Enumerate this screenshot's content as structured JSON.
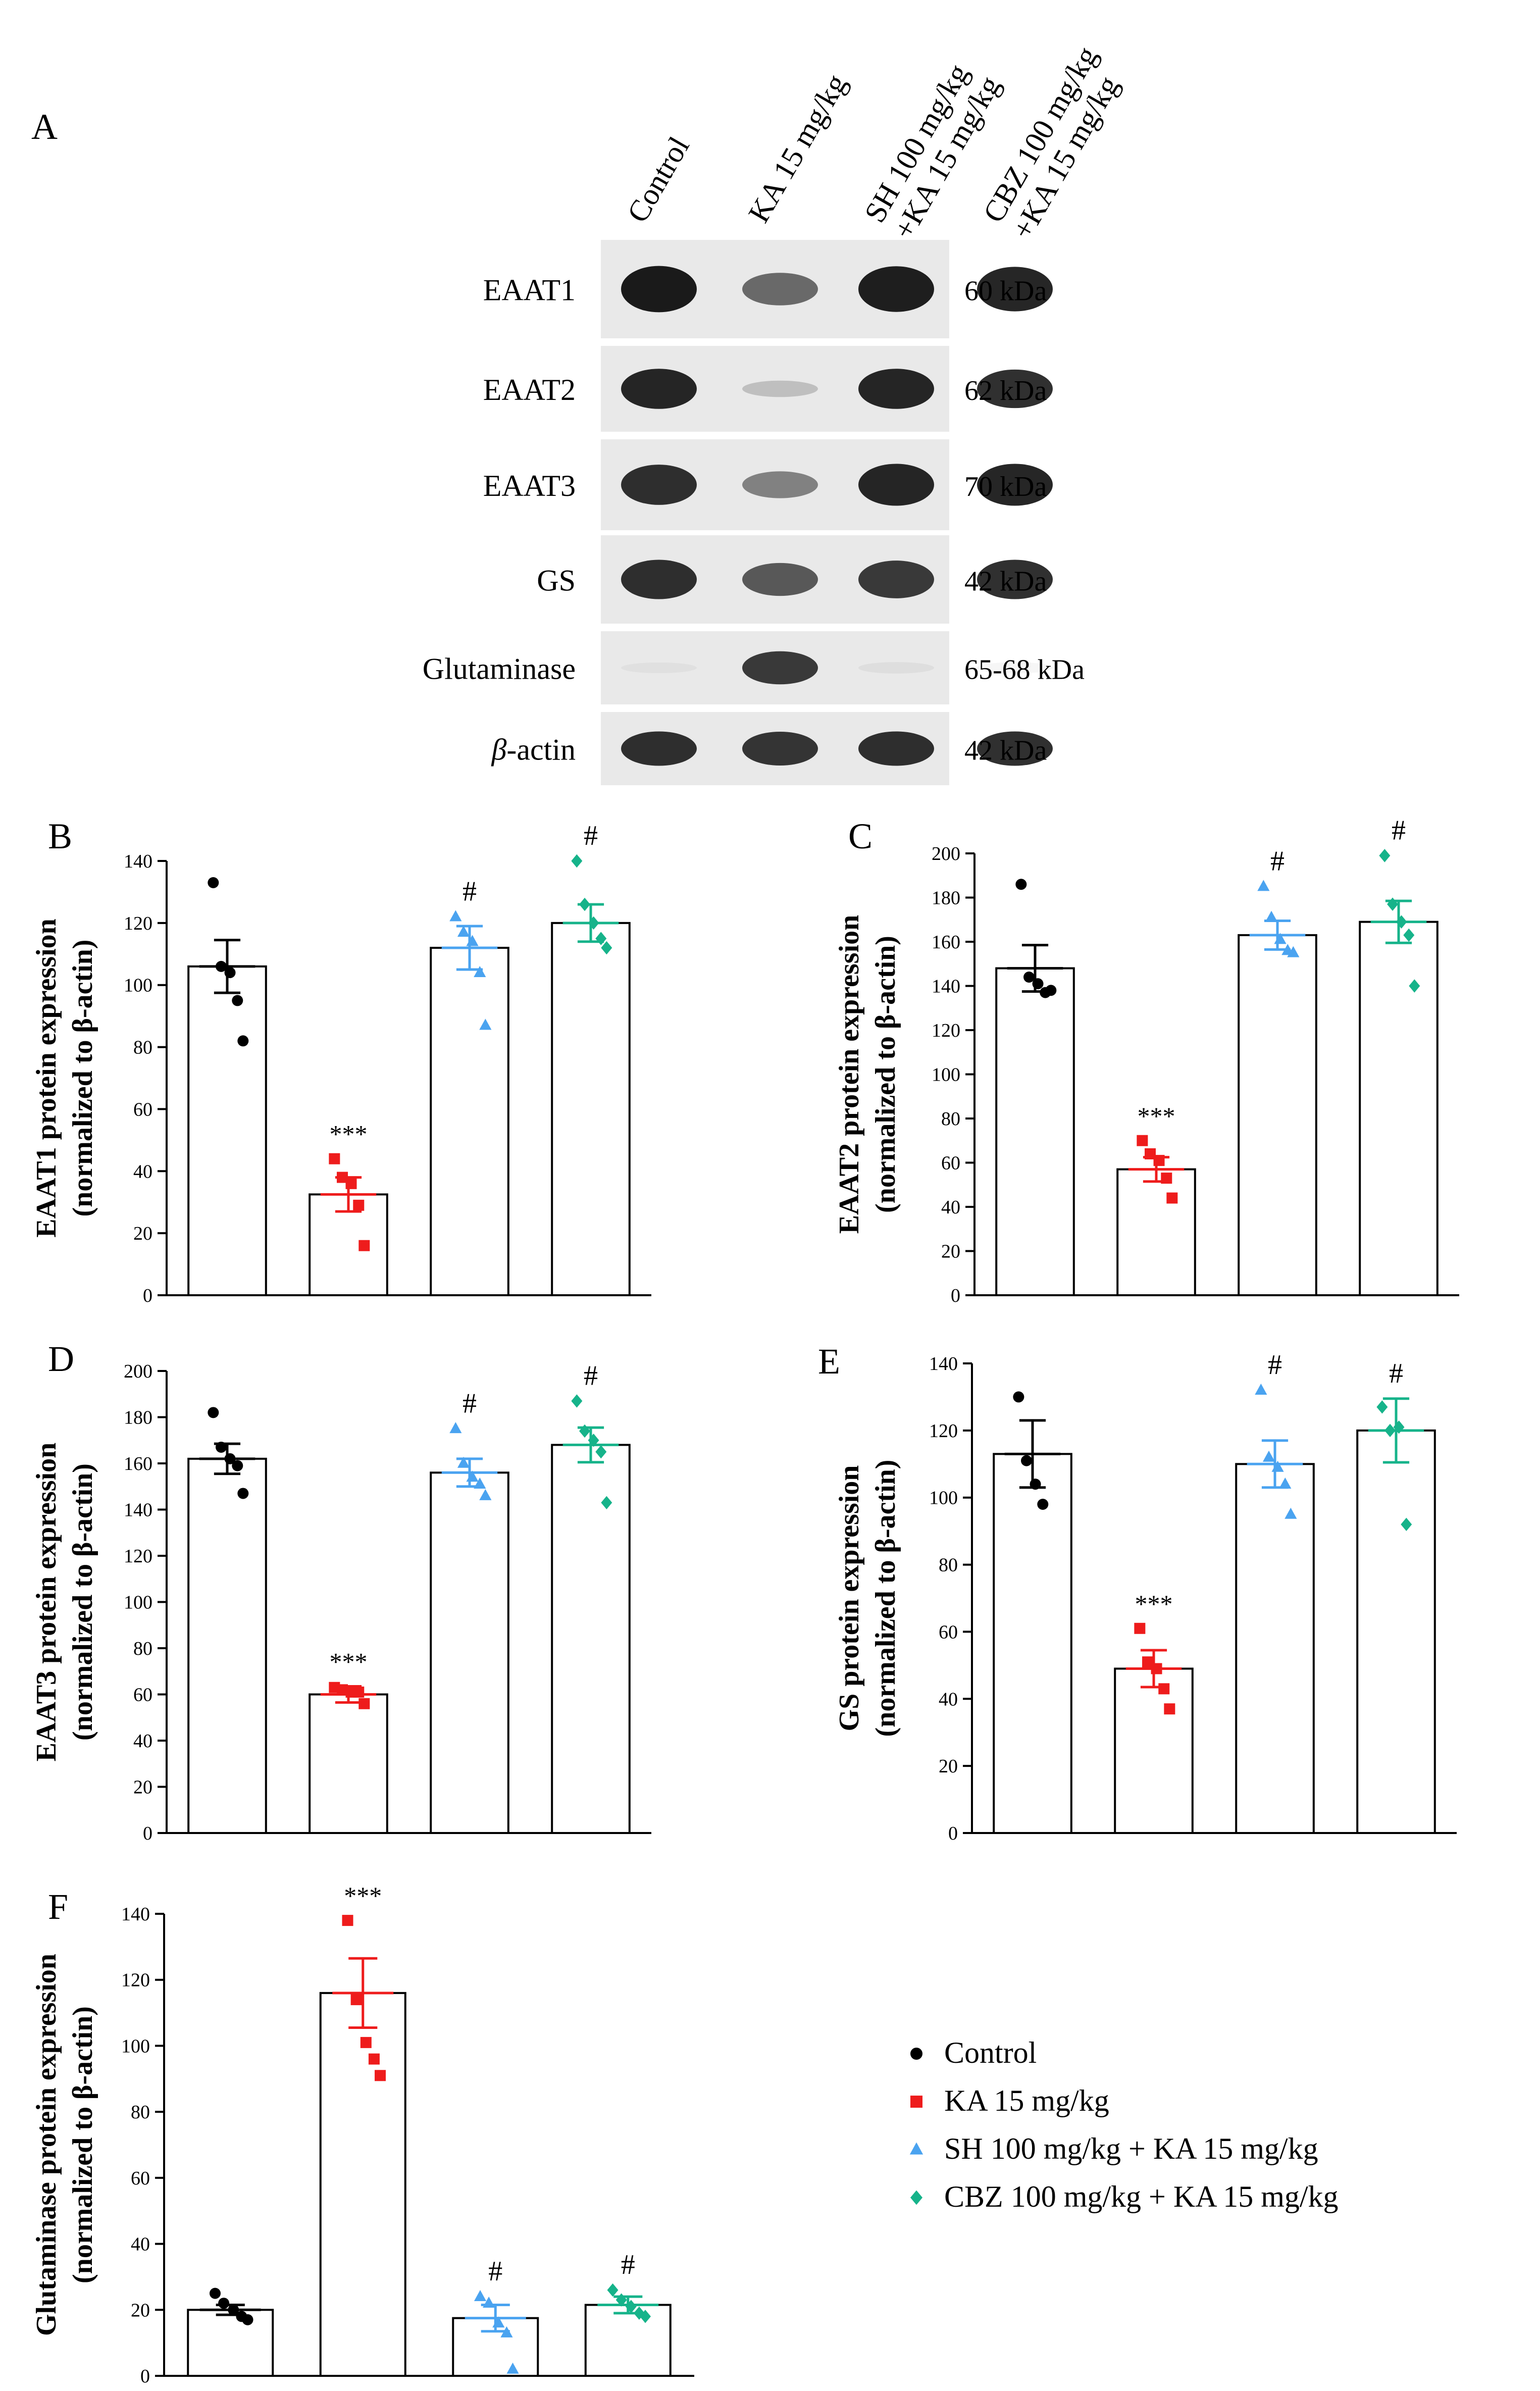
{
  "colors": {
    "control": "#000000",
    "ka": "#ee1c1c",
    "sh": "#4aa3f0",
    "cbz": "#16b38a",
    "axis": "#000000",
    "blot_bg": "#e9e9e9",
    "band": "#1a1a1a"
  },
  "blot": {
    "panel_label": "A",
    "lanes": [
      "Control",
      "KA 15 mg/kg",
      "SH 100 mg/kg\n+KA 15 mg/kg",
      "CBZ 100 mg/kg\n+KA 15 mg/kg"
    ],
    "rows": [
      {
        "protein": "EAAT1",
        "kda": "60 kDa",
        "intensity": [
          1.0,
          0.62,
          0.98,
          0.95
        ]
      },
      {
        "protein": "EAAT2",
        "kda": "62 kDa",
        "intensity": [
          0.95,
          0.2,
          0.95,
          0.9
        ]
      },
      {
        "protein": "EAAT3",
        "kda": "70 kDa",
        "intensity": [
          0.9,
          0.5,
          0.95,
          0.95
        ]
      },
      {
        "protein": "GS",
        "kda": "42 kDa",
        "intensity": [
          0.9,
          0.7,
          0.85,
          0.9
        ]
      },
      {
        "protein": "Glutaminase",
        "kda": "65-68 kDa",
        "intensity": [
          0.02,
          0.85,
          0.05,
          0.04
        ]
      },
      {
        "protein": "β-actin",
        "kda": "42 kDa",
        "intensity": [
          0.9,
          0.88,
          0.9,
          0.9
        ]
      }
    ]
  },
  "legend": {
    "items": [
      {
        "label": "Control",
        "marker": "circle",
        "color_key": "control"
      },
      {
        "label": "KA 15 mg/kg",
        "marker": "square",
        "color_key": "ka"
      },
      {
        "label": "SH 100 mg/kg + KA 15 mg/kg",
        "marker": "triangle",
        "color_key": "sh"
      },
      {
        "label": "CBZ 100 mg/kg + KA 15 mg/kg",
        "marker": "diamond",
        "color_key": "cbz"
      }
    ]
  },
  "chart_data": [
    {
      "panel": "B",
      "type": "bar",
      "ylabel": "EAAT1 protein expression",
      "ylabel2": "(normalized to β-actin)",
      "ylim": [
        0,
        140
      ],
      "yticks": [
        0,
        20,
        40,
        60,
        80,
        100,
        120,
        140
      ],
      "groups": [
        "Control",
        "KA 15 mg/kg",
        "SH 100 mg/kg + KA 15 mg/kg",
        "CBZ 100 mg/kg + KA 15 mg/kg"
      ],
      "values": [
        106,
        32.5,
        112,
        120
      ],
      "sem": [
        8.5,
        5.5,
        7,
        6
      ],
      "points": [
        [
          133,
          106,
          104,
          95,
          82
        ],
        [
          44,
          38,
          36,
          29,
          16
        ],
        [
          122,
          117,
          114,
          104,
          87
        ],
        [
          140,
          126,
          120,
          115,
          112
        ]
      ],
      "annotations": [
        "",
        "***",
        "#",
        "#"
      ]
    },
    {
      "panel": "C",
      "type": "bar",
      "ylabel": "EAAT2 protein expression",
      "ylabel2": "(normalized to β-actin)",
      "ylim": [
        0,
        200
      ],
      "yticks": [
        0,
        20,
        40,
        60,
        80,
        100,
        120,
        140,
        160,
        180,
        200
      ],
      "groups": [
        "Control",
        "KA 15 mg/kg",
        "SH 100 mg/kg + KA 15 mg/kg",
        "CBZ 100 mg/kg + KA 15 mg/kg"
      ],
      "values": [
        148,
        57,
        163,
        169
      ],
      "sem": [
        10.5,
        5.5,
        6.5,
        9.5
      ],
      "points": [
        [
          186,
          144,
          141,
          137,
          138
        ],
        [
          70,
          64,
          61,
          53,
          44
        ],
        [
          185,
          171,
          161,
          156,
          155
        ],
        [
          199,
          177,
          169,
          163,
          140
        ]
      ],
      "annotations": [
        "",
        "***",
        "#",
        "#"
      ]
    },
    {
      "panel": "D",
      "type": "bar",
      "ylabel": "EAAT3 protein expression",
      "ylabel2": "(normalized to β-actin)",
      "ylim": [
        0,
        200
      ],
      "yticks": [
        0,
        20,
        40,
        60,
        80,
        100,
        120,
        140,
        160,
        180,
        200
      ],
      "groups": [
        "Control",
        "KA 15 mg/kg",
        "SH 100 mg/kg + KA 15 mg/kg",
        "CBZ 100 mg/kg + KA 15 mg/kg"
      ],
      "values": [
        162,
        60,
        156,
        168
      ],
      "sem": [
        6.5,
        3.5,
        6,
        7.5
      ],
      "points": [
        [
          182,
          167,
          162,
          159,
          147
        ],
        [
          63,
          62,
          61,
          61,
          56
        ],
        [
          175,
          160,
          154,
          151,
          146
        ],
        [
          187,
          174,
          170,
          165,
          143
        ]
      ],
      "annotations": [
        "",
        "***",
        "#",
        "#"
      ]
    },
    {
      "panel": "E",
      "type": "bar",
      "ylabel": "GS protein expression",
      "ylabel2": "(normalized to β-actin)",
      "ylim": [
        0,
        140
      ],
      "yticks": [
        0,
        20,
        40,
        60,
        80,
        100,
        120,
        140
      ],
      "groups": [
        "Control",
        "KA 15 mg/kg",
        "SH 100 mg/kg + KA 15 mg/kg",
        "CBZ 100 mg/kg + KA 15 mg/kg"
      ],
      "values": [
        113,
        49,
        110,
        120
      ],
      "sem": [
        10,
        5.5,
        7,
        9.5
      ],
      "points": [
        [
          130,
          111,
          104,
          98
        ],
        [
          61,
          51,
          49,
          43,
          37
        ],
        [
          132,
          112,
          109,
          104,
          95
        ],
        [
          127,
          120,
          121,
          92
        ]
      ],
      "annotations": [
        "",
        "***",
        "#",
        "#"
      ]
    },
    {
      "panel": "F",
      "type": "bar",
      "ylabel": "Glutaminase protein expression",
      "ylabel2": "(normalized to β-actin)",
      "ylim": [
        0,
        140
      ],
      "yticks": [
        0,
        20,
        40,
        60,
        80,
        100,
        120,
        140
      ],
      "groups": [
        "Control",
        "KA 15 mg/kg",
        "SH 100 mg/kg + KA 15 mg/kg",
        "CBZ 100 mg/kg + KA 15 mg/kg"
      ],
      "values": [
        20,
        116,
        17.5,
        21.5
      ],
      "sem": [
        1.5,
        10.5,
        4,
        2.5
      ],
      "points": [
        [
          25,
          22,
          20,
          18,
          17
        ],
        [
          138,
          114,
          101,
          96,
          91
        ],
        [
          24,
          22,
          16,
          13,
          2
        ],
        [
          26,
          23,
          21,
          19,
          18
        ]
      ],
      "annotations": [
        "",
        "***",
        "#",
        "#"
      ]
    }
  ]
}
